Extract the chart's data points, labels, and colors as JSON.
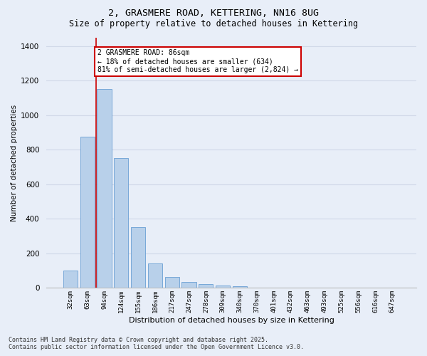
{
  "title_line1": "2, GRASMERE ROAD, KETTERING, NN16 8UG",
  "title_line2": "Size of property relative to detached houses in Kettering",
  "xlabel": "Distribution of detached houses by size in Kettering",
  "ylabel": "Number of detached properties",
  "bar_values": [
    100,
    875,
    1150,
    750,
    350,
    140,
    62,
    33,
    22,
    15,
    10,
    0,
    0,
    0,
    0,
    0,
    0,
    0,
    0,
    0
  ],
  "bar_labels": [
    "32sqm",
    "63sqm",
    "94sqm",
    "124sqm",
    "155sqm",
    "186sqm",
    "217sqm",
    "247sqm",
    "278sqm",
    "309sqm",
    "340sqm",
    "370sqm",
    "401sqm",
    "432sqm",
    "463sqm",
    "493sqm",
    "525sqm",
    "556sqm",
    "616sqm",
    "647sqm"
  ],
  "bar_color": "#b8d0ea",
  "bar_edge_color": "#6a9fd4",
  "grid_color": "#d0d8e8",
  "background_color": "#e8eef8",
  "vline_x": 1.5,
  "vline_color": "#cc0000",
  "annotation_text": "2 GRASMERE ROAD: 86sqm\n← 18% of detached houses are smaller (634)\n81% of semi-detached houses are larger (2,824) →",
  "annotation_box_color": "#ffffff",
  "annotation_box_edge": "#cc0000",
  "ylim": [
    0,
    1450
  ],
  "yticks": [
    0,
    200,
    400,
    600,
    800,
    1000,
    1200,
    1400
  ],
  "footer_line1": "Contains HM Land Registry data © Crown copyright and database right 2025.",
  "footer_line2": "Contains public sector information licensed under the Open Government Licence v3.0."
}
